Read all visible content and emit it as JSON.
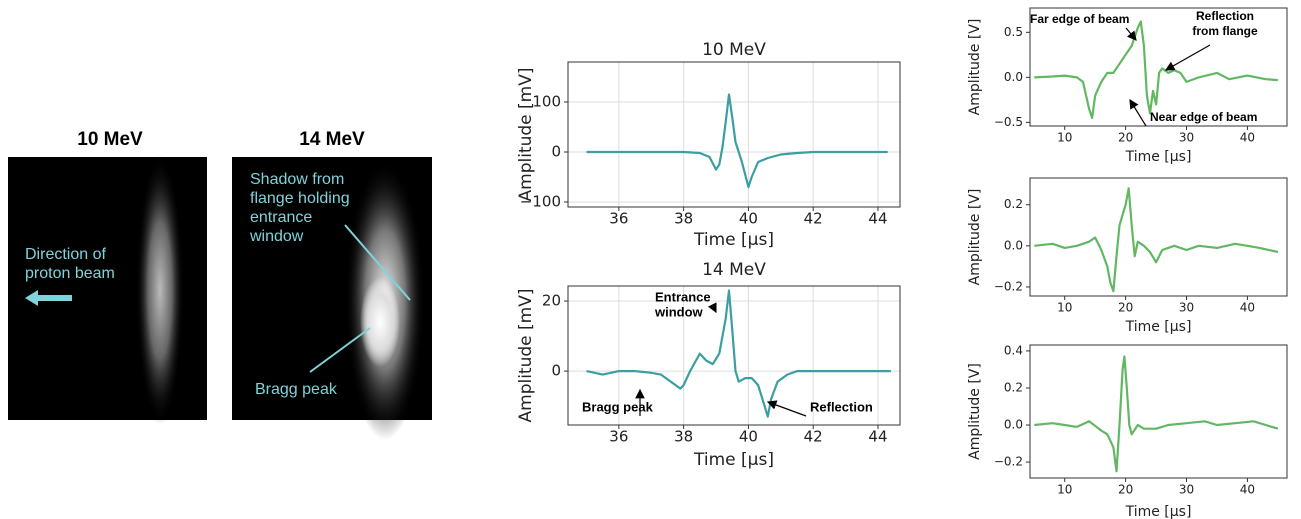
{
  "images": [
    {
      "title": "10 MeV",
      "annotation": [
        "Direction of",
        "proton beam"
      ]
    },
    {
      "title": "14 MeV",
      "annotations": [
        [
          "Shadow from",
          "flange holding",
          "entrance",
          "window"
        ],
        [
          "Bragg peak"
        ]
      ]
    }
  ],
  "chart_data": [
    {
      "type": "line",
      "title": "10 MeV",
      "xlabel": "Time [μs]",
      "ylabel": "Amplitude [mV]",
      "color": "#3a9ea2",
      "grid": true,
      "x": [
        35,
        36,
        37,
        38,
        38.5,
        38.8,
        39.0,
        39.1,
        39.2,
        39.3,
        39.4,
        39.5,
        39.6,
        39.8,
        40.0,
        40.1,
        40.3,
        40.6,
        41,
        41.5,
        42,
        43,
        44.3
      ],
      "values": [
        0,
        0,
        0,
        0,
        -2,
        -10,
        -35,
        -25,
        10,
        60,
        115,
        70,
        20,
        -20,
        -70,
        -50,
        -20,
        -12,
        -5,
        -2,
        0,
        0,
        0
      ],
      "xlim": [
        34.43,
        44.68
      ],
      "ylim": [
        -110,
        180
      ],
      "xticks": [
        36,
        38,
        40,
        42,
        44
      ],
      "yticks": [
        {
          "value": -100,
          "label": "−100"
        },
        0,
        100
      ]
    },
    {
      "type": "line",
      "title": "14 MeV",
      "xlabel": "Time [μs]",
      "ylabel": "Amplitude [mV]",
      "color": "#3a9ea2",
      "grid": true,
      "x": [
        35,
        35.5,
        36,
        36.5,
        37,
        37.3,
        37.6,
        37.9,
        38.0,
        38.2,
        38.5,
        38.7,
        38.9,
        39.1,
        39.3,
        39.4,
        39.5,
        39.6,
        39.7,
        39.9,
        40.1,
        40.3,
        40.5,
        40.6,
        40.7,
        40.9,
        41.2,
        41.5,
        42,
        43,
        44,
        44.4
      ],
      "values": [
        0,
        -1,
        0,
        0,
        -0.5,
        -1,
        -3,
        -5,
        -4,
        0,
        5,
        3,
        2,
        5,
        15,
        23,
        12,
        0,
        -3,
        -2,
        -2,
        -4,
        -10,
        -13,
        -8,
        -3,
        -1,
        0,
        0,
        0,
        0,
        0
      ],
      "xlim": [
        34.43,
        44.68
      ],
      "ylim": [
        -15.4,
        24.3
      ],
      "xticks": [
        36,
        38,
        40,
        42,
        44
      ],
      "yticks": [
        0,
        20
      ],
      "annotations": [
        [
          "Entrance",
          "window"
        ],
        [
          "Bragg peak"
        ],
        [
          "Reflection"
        ]
      ]
    },
    {
      "type": "line",
      "xlabel": "Time [μs]",
      "ylabel": "Amplitude [V]",
      "color": "#62b862",
      "grid": false,
      "x": [
        5,
        8,
        10,
        12,
        13,
        14,
        14.5,
        15,
        16,
        17,
        18,
        19,
        20,
        21,
        22,
        22.5,
        23,
        23.5,
        24,
        24.5,
        25,
        25.5,
        26,
        27,
        28,
        29,
        30,
        32,
        35,
        37,
        40,
        43,
        45
      ],
      "values": [
        0,
        0.01,
        0.02,
        0,
        -0.05,
        -0.35,
        -0.45,
        -0.2,
        -0.05,
        0.05,
        0.05,
        0.15,
        0.25,
        0.35,
        0.55,
        0.62,
        0.35,
        -0.2,
        -0.4,
        -0.15,
        -0.3,
        0.05,
        0.1,
        0.05,
        0.08,
        0.05,
        -0.05,
        0,
        0.05,
        -0.02,
        0.02,
        -0.02,
        -0.03
      ],
      "xlim": [
        4.3,
        46.5
      ],
      "ylim": [
        -0.54,
        0.77
      ],
      "xticks": [
        10,
        20,
        30,
        40
      ],
      "yticks": [
        {
          "value": -0.5,
          "label": "−0.5"
        },
        {
          "value": 0,
          "label": "0.0"
        },
        0.5
      ],
      "annotations": [
        [
          "Far edge of beam"
        ],
        [
          "Reflection",
          "from flange"
        ],
        [
          "Near edge of beam"
        ]
      ]
    },
    {
      "type": "line",
      "xlabel": "Time [μs]",
      "ylabel": "Amplitude [V]",
      "color": "#62b862",
      "grid": false,
      "x": [
        5,
        8,
        10,
        12,
        14,
        15,
        16,
        17,
        17.5,
        18,
        18.5,
        19,
        20,
        20.5,
        21,
        21.5,
        22,
        23,
        24,
        25,
        26,
        28,
        30,
        32,
        35,
        38,
        40,
        42,
        45
      ],
      "values": [
        0,
        0.01,
        -0.01,
        0,
        0.02,
        0.04,
        -0.02,
        -0.1,
        -0.18,
        -0.22,
        -0.05,
        0.1,
        0.2,
        0.28,
        0.1,
        -0.05,
        0.02,
        0,
        -0.03,
        -0.08,
        -0.02,
        0,
        -0.02,
        0,
        -0.01,
        0.01,
        0,
        -0.01,
        -0.03
      ],
      "xlim": [
        4.3,
        46.5
      ],
      "ylim": [
        -0.244,
        0.33
      ],
      "xticks": [
        10,
        20,
        30,
        40
      ],
      "yticks": [
        {
          "value": -0.2,
          "label": "−0.2"
        },
        {
          "value": 0,
          "label": "0.0"
        },
        0.2
      ]
    },
    {
      "type": "line",
      "xlabel": "Time [μs]",
      "ylabel": "Amplitude [V]",
      "color": "#62b862",
      "grid": false,
      "x": [
        5,
        8,
        10,
        12,
        14,
        16,
        17,
        18,
        18.5,
        19,
        19.5,
        19.8,
        20.2,
        20.6,
        21,
        22,
        23,
        25,
        27,
        30,
        33,
        35,
        38,
        41,
        43,
        45
      ],
      "values": [
        0,
        0.01,
        0,
        -0.01,
        0.02,
        -0.03,
        -0.05,
        -0.12,
        -0.25,
        0,
        0.3,
        0.37,
        0.2,
        0,
        -0.05,
        0,
        -0.02,
        -0.02,
        0,
        0.01,
        0.02,
        0,
        0.01,
        0.02,
        0,
        -0.02
      ],
      "xlim": [
        4.3,
        46.5
      ],
      "ylim": [
        -0.286,
        0.432
      ],
      "xticks": [
        10,
        20,
        30,
        40
      ],
      "yticks": [
        {
          "value": -0.2,
          "label": "−0.2"
        },
        {
          "value": 0,
          "label": "0.0"
        },
        0.2,
        0.4
      ]
    }
  ]
}
